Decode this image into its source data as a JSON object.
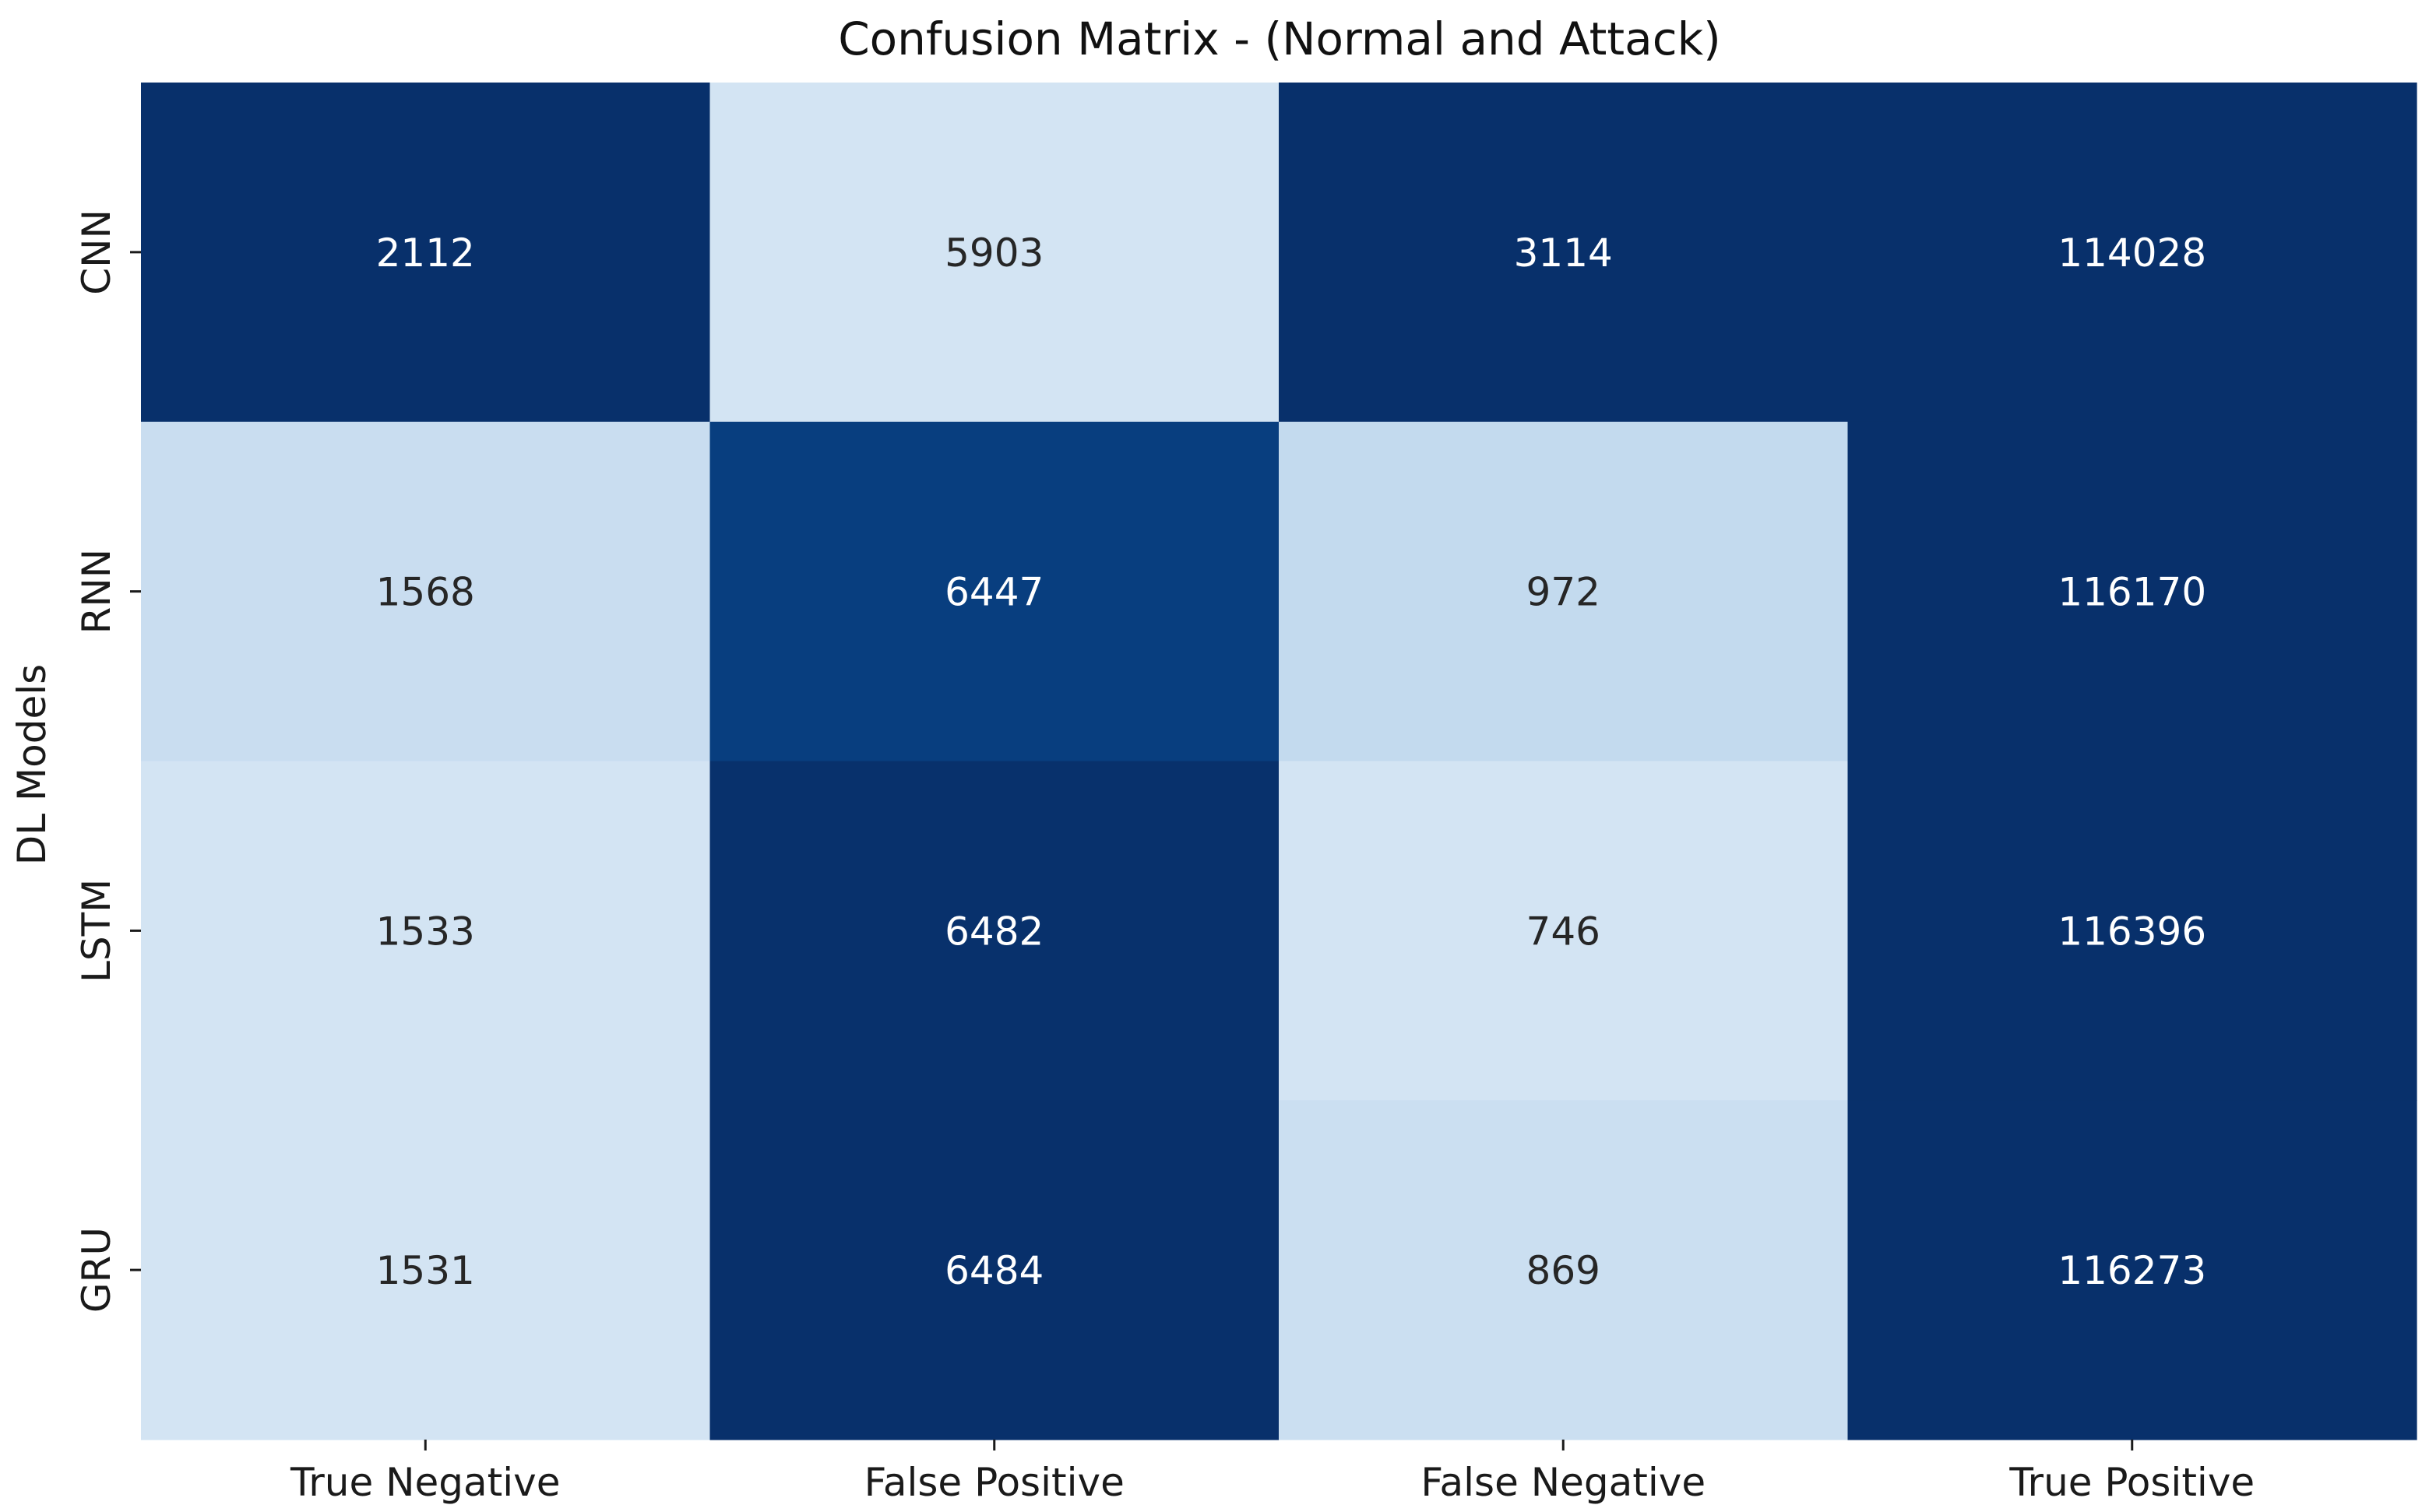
{
  "chart_data": {
    "type": "heatmap",
    "title": "Confusion Matrix - (Normal and Attack)",
    "xlabel": "",
    "ylabel": "DL Models",
    "x_categories": [
      "True Negative",
      "False Positive",
      "False Negative",
      "True Positive"
    ],
    "y_categories": [
      "CNN",
      "RNN",
      "LSTM",
      "GRU"
    ],
    "values": [
      [
        2112,
        5903,
        3114,
        114028
      ],
      [
        1568,
        6447,
        972,
        116170
      ],
      [
        1533,
        6482,
        746,
        116396
      ],
      [
        1531,
        6484,
        869,
        116273
      ]
    ],
    "colormap": "Blues",
    "normalization": "per-column",
    "colorbar": false
  },
  "colors": {
    "blues_light": "#f7fbff",
    "blues_dark": "#08306b",
    "text_dark": "#262626",
    "text_light": "#ffffff"
  }
}
